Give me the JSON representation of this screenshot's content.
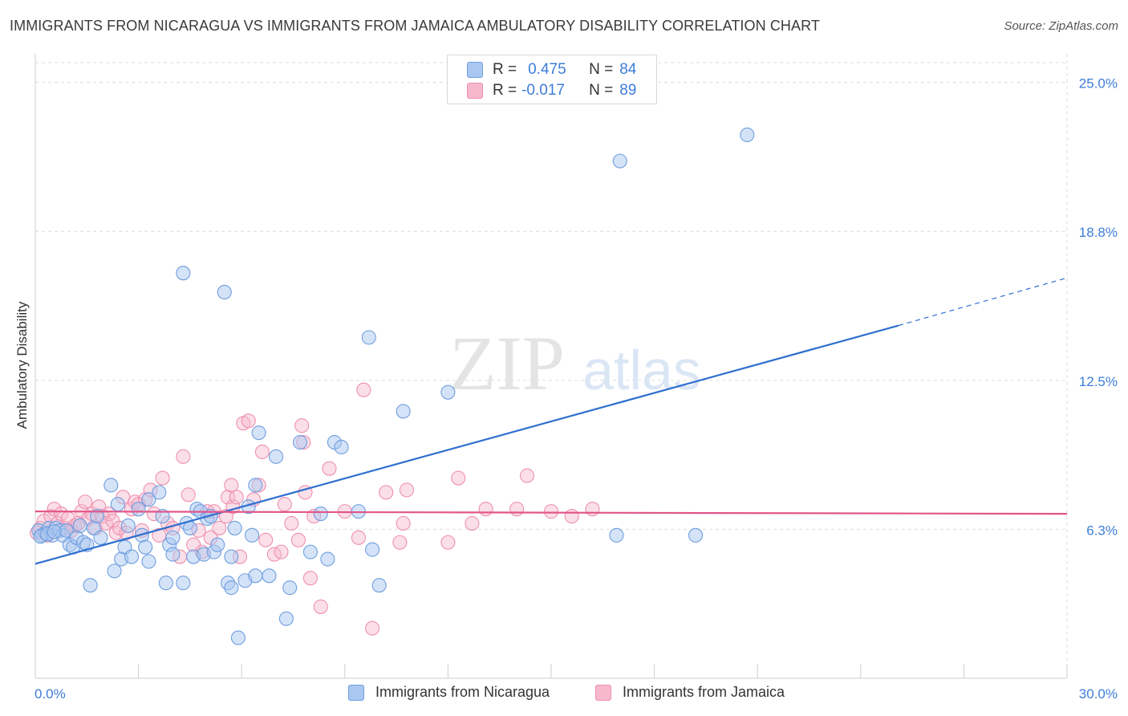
{
  "title": "IMMIGRANTS FROM NICARAGUA VS IMMIGRANTS FROM JAMAICA AMBULATORY DISABILITY CORRELATION CHART",
  "source": "Source: ZipAtlas.com",
  "watermark": {
    "zip": "ZIP",
    "atlas": "atlas"
  },
  "legend": {
    "rows": [
      {
        "r_label": "R =",
        "r_value": "0.475",
        "n_label": "N =",
        "n_value": "84"
      },
      {
        "r_label": "R =",
        "r_value": "-0.017",
        "n_label": "N =",
        "n_value": "89"
      }
    ]
  },
  "bottom_legend": [
    {
      "label": "Immigrants from Nicaragua"
    },
    {
      "label": "Immigrants from Jamaica"
    }
  ],
  "colors": {
    "nicaragua_fill": "#a9c7f0",
    "nicaragua_stroke": "#6f9ee0",
    "nicaragua_line": "#2e6fd0",
    "jamaica_fill": "#f7b8cc",
    "jamaica_stroke": "#ee90ae",
    "jamaica_line": "#e2558a",
    "value_text": "#3d7dd8",
    "grid": "#dcdcdc"
  },
  "chart_data": {
    "type": "scatter",
    "title": "IMMIGRANTS FROM NICARAGUA VS IMMIGRANTS FROM JAMAICA AMBULATORY DISABILITY CORRELATION CHART",
    "xlabel": "",
    "ylabel": "Ambulatory Disability",
    "xlim": [
      0,
      30
    ],
    "ylim": [
      0,
      26.2
    ],
    "x_tick_labels": [
      "0.0%",
      "30.0%"
    ],
    "y_tick_labels": [
      "6.3%",
      "12.5%",
      "18.8%",
      "25.0%"
    ],
    "y_ticks": [
      6.25,
      12.5,
      18.75,
      25.0
    ],
    "grid": true,
    "legend_position": "top-center",
    "series": [
      {
        "name": "Immigrants from Nicaragua",
        "r": 0.475,
        "n": 84,
        "trend": {
          "x0": 0,
          "y0": 4.8,
          "x1": 25.1,
          "y1": 14.8,
          "dashed_to_x": 30,
          "dashed_to_y": 16.8
        },
        "points": [
          [
            0.1,
            6.2
          ],
          [
            0.2,
            6.0
          ],
          [
            0.3,
            6.1
          ],
          [
            0.4,
            6.3
          ],
          [
            0.5,
            6.0
          ],
          [
            0.6,
            6.3
          ],
          [
            0.7,
            6.2
          ],
          [
            0.8,
            6.0
          ],
          [
            0.9,
            6.2
          ],
          [
            1.0,
            5.6
          ],
          [
            1.1,
            5.5
          ],
          [
            1.2,
            5.9
          ],
          [
            1.3,
            6.4
          ],
          [
            1.4,
            5.7
          ],
          [
            1.5,
            5.6
          ],
          [
            1.6,
            3.9
          ],
          [
            1.7,
            6.3
          ],
          [
            1.8,
            6.8
          ],
          [
            1.9,
            5.9
          ],
          [
            2.2,
            8.1
          ],
          [
            2.3,
            4.5
          ],
          [
            2.4,
            7.3
          ],
          [
            2.5,
            5.0
          ],
          [
            2.6,
            5.5
          ],
          [
            2.7,
            6.4
          ],
          [
            2.8,
            5.1
          ],
          [
            3.0,
            7.1
          ],
          [
            3.1,
            6.0
          ],
          [
            3.2,
            5.5
          ],
          [
            3.3,
            7.5
          ],
          [
            3.3,
            4.9
          ],
          [
            3.6,
            7.8
          ],
          [
            3.7,
            6.8
          ],
          [
            3.8,
            4.0
          ],
          [
            3.9,
            5.6
          ],
          [
            4.0,
            5.2
          ],
          [
            4.0,
            5.9
          ],
          [
            4.3,
            4.0
          ],
          [
            4.4,
            6.5
          ],
          [
            4.5,
            6.3
          ],
          [
            4.6,
            5.1
          ],
          [
            4.7,
            7.1
          ],
          [
            4.8,
            7.0
          ],
          [
            4.9,
            5.2
          ],
          [
            5.0,
            6.7
          ],
          [
            5.1,
            6.8
          ],
          [
            5.2,
            5.3
          ],
          [
            5.3,
            5.6
          ],
          [
            5.5,
            16.2
          ],
          [
            5.6,
            4.0
          ],
          [
            5.7,
            5.1
          ],
          [
            5.7,
            3.8
          ],
          [
            5.8,
            6.3
          ],
          [
            5.9,
            1.7
          ],
          [
            6.1,
            4.1
          ],
          [
            6.2,
            7.2
          ],
          [
            6.3,
            6.0
          ],
          [
            6.4,
            4.3
          ],
          [
            6.4,
            8.1
          ],
          [
            6.5,
            10.3
          ],
          [
            6.8,
            4.3
          ],
          [
            7.0,
            9.3
          ],
          [
            7.3,
            2.5
          ],
          [
            7.4,
            3.8
          ],
          [
            7.7,
            9.9
          ],
          [
            8.0,
            5.3
          ],
          [
            8.3,
            6.9
          ],
          [
            8.5,
            5.0
          ],
          [
            8.7,
            9.9
          ],
          [
            8.9,
            9.7
          ],
          [
            9.4,
            7.0
          ],
          [
            9.7,
            14.3
          ],
          [
            9.8,
            5.4
          ],
          [
            10.0,
            3.9
          ],
          [
            10.7,
            11.2
          ],
          [
            12.0,
            12.0
          ],
          [
            4.3,
            17.0
          ],
          [
            16.9,
            6.0
          ],
          [
            17.0,
            21.7
          ],
          [
            19.2,
            6.0
          ],
          [
            20.7,
            22.8
          ],
          [
            0.15,
            5.95
          ],
          [
            0.35,
            6.05
          ],
          [
            0.55,
            6.15
          ]
        ]
      },
      {
        "name": "Immigrants from Jamaica",
        "r": -0.017,
        "n": 89,
        "trend": {
          "x0": 0,
          "y0": 7.0,
          "x1": 30,
          "y1": 6.9
        },
        "points": [
          [
            0.05,
            6.1
          ],
          [
            0.15,
            6.3
          ],
          [
            0.25,
            6.6
          ],
          [
            0.35,
            6.0
          ],
          [
            0.45,
            6.8
          ],
          [
            0.55,
            7.1
          ],
          [
            0.65,
            6.5
          ],
          [
            0.75,
            6.9
          ],
          [
            0.85,
            6.3
          ],
          [
            0.95,
            6.7
          ],
          [
            1.05,
            6.2
          ],
          [
            1.15,
            6.4
          ],
          [
            1.25,
            6.5
          ],
          [
            1.35,
            7.0
          ],
          [
            1.45,
            7.4
          ],
          [
            1.55,
            6.7
          ],
          [
            1.65,
            6.9
          ],
          [
            1.75,
            6.3
          ],
          [
            1.85,
            7.2
          ],
          [
            1.95,
            6.8
          ],
          [
            2.05,
            6.5
          ],
          [
            2.15,
            6.9
          ],
          [
            2.25,
            6.6
          ],
          [
            2.35,
            6.1
          ],
          [
            2.45,
            6.3
          ],
          [
            2.55,
            7.6
          ],
          [
            2.65,
            6.1
          ],
          [
            2.8,
            7.1
          ],
          [
            2.9,
            7.4
          ],
          [
            3.0,
            7.3
          ],
          [
            3.1,
            6.2
          ],
          [
            3.2,
            7.5
          ],
          [
            3.35,
            7.9
          ],
          [
            3.45,
            6.9
          ],
          [
            3.6,
            6.0
          ],
          [
            3.7,
            8.4
          ],
          [
            3.85,
            6.5
          ],
          [
            4.0,
            6.3
          ],
          [
            4.2,
            5.1
          ],
          [
            4.3,
            9.3
          ],
          [
            4.45,
            7.7
          ],
          [
            4.6,
            5.6
          ],
          [
            4.75,
            6.2
          ],
          [
            4.85,
            5.3
          ],
          [
            5.0,
            7.0
          ],
          [
            5.1,
            5.9
          ],
          [
            5.2,
            7.0
          ],
          [
            5.35,
            6.3
          ],
          [
            5.55,
            6.8
          ],
          [
            5.6,
            7.6
          ],
          [
            5.7,
            8.1
          ],
          [
            5.75,
            7.2
          ],
          [
            5.85,
            7.6
          ],
          [
            5.95,
            5.1
          ],
          [
            6.05,
            10.7
          ],
          [
            6.2,
            10.8
          ],
          [
            6.35,
            7.5
          ],
          [
            6.5,
            8.1
          ],
          [
            6.6,
            9.5
          ],
          [
            6.7,
            5.8
          ],
          [
            6.95,
            5.2
          ],
          [
            7.15,
            5.3
          ],
          [
            7.25,
            7.3
          ],
          [
            7.45,
            6.5
          ],
          [
            7.65,
            5.8
          ],
          [
            7.75,
            10.6
          ],
          [
            7.8,
            9.9
          ],
          [
            7.85,
            7.8
          ],
          [
            8.0,
            4.2
          ],
          [
            8.1,
            6.8
          ],
          [
            8.3,
            3.0
          ],
          [
            8.55,
            8.8
          ],
          [
            9.0,
            7.0
          ],
          [
            9.4,
            5.9
          ],
          [
            9.55,
            12.1
          ],
          [
            9.8,
            2.1
          ],
          [
            10.2,
            7.8
          ],
          [
            10.6,
            5.7
          ],
          [
            10.7,
            6.5
          ],
          [
            10.8,
            7.9
          ],
          [
            12.0,
            5.7
          ],
          [
            12.3,
            8.4
          ],
          [
            12.7,
            6.5
          ],
          [
            13.1,
            7.1
          ],
          [
            14.0,
            7.1
          ],
          [
            14.3,
            8.5
          ],
          [
            15.0,
            7.0
          ],
          [
            15.6,
            6.8
          ],
          [
            16.2,
            7.1
          ]
        ]
      }
    ]
  }
}
